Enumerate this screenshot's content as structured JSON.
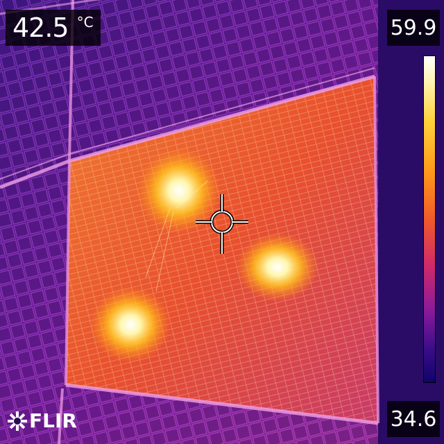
{
  "readout": {
    "value": "42.5",
    "unit": "°C"
  },
  "scale": {
    "max": "59.9",
    "min": "34.6"
  },
  "brand": {
    "name": "FLIR"
  },
  "colors": {
    "cool": "#6a1aa8",
    "warm": "#ff7a2a",
    "hot": "#fffbe0"
  },
  "icons": {
    "crosshair": "crosshair-icon",
    "logo": "flir-logo-icon"
  }
}
